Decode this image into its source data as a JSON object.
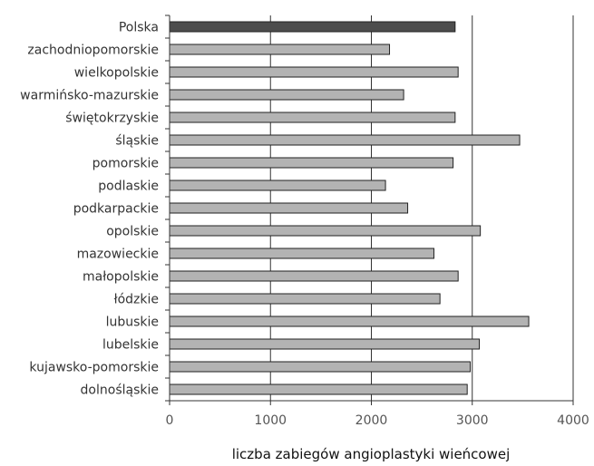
{
  "chart_data": {
    "type": "bar",
    "orientation": "horizontal",
    "categories": [
      "Polska",
      "zachodniopomorskie",
      "wielkopolskie",
      "warmińsko-mazurskie",
      "świętokrzyskie",
      "śląskie",
      "pomorskie",
      "podlaskie",
      "podkarpackie",
      "opolskie",
      "mazowieckie",
      "małopolskie",
      "łódzkie",
      "lubuskie",
      "lubelskie",
      "kujawsko-pomorskie",
      "dolnośląskie"
    ],
    "values": [
      2830,
      2180,
      2860,
      2320,
      2830,
      3470,
      2810,
      2140,
      2360,
      3080,
      2620,
      2860,
      2680,
      3560,
      3070,
      2980,
      2950
    ],
    "highlight_category": "Polska",
    "xlim": [
      0,
      4000
    ],
    "xticks": [
      0,
      1000,
      2000,
      3000,
      4000
    ],
    "xtick_labels": [
      "0",
      "1000",
      "2000",
      "3000",
      "4000"
    ],
    "xlabel": "liczba zabiegów angioplastyki wieńcowej",
    "ylabel": "",
    "title": "",
    "grid": "vertical",
    "colors": {
      "highlight_bar": "#4d4d4d",
      "bar": "#b3b3b3",
      "bar_outline": "#222222",
      "grid": "#333333",
      "axis": "#333333"
    }
  }
}
